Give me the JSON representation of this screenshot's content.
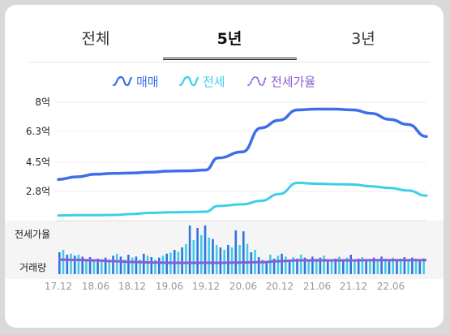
{
  "tabs": [
    {
      "label": "전체",
      "active": false
    },
    {
      "label": "5년",
      "active": true
    },
    {
      "label": "3년",
      "active": false
    }
  ],
  "legend": [
    {
      "label": "매매",
      "color": "#3d6fe8",
      "icon": "wave-icon-solid"
    },
    {
      "label": "전세",
      "color": "#3ccfe8",
      "icon": "wave-icon-solid"
    },
    {
      "label": "전세가율",
      "color": "#8a5bd6",
      "icon": "wave-icon-dotted"
    }
  ],
  "chart_data": {
    "type": "line",
    "y_tick_labels": [
      "8억",
      "6.3억",
      "4.5억",
      "2.8억"
    ],
    "y_ticks": [
      8,
      6.3,
      4.5,
      2.8
    ],
    "x_tick_labels": [
      "17.12",
      "18.06",
      "18.12",
      "19.06",
      "19.12",
      "20.06",
      "20.12",
      "21.06",
      "21.12",
      "22.06"
    ],
    "sub_labels": [
      "전세가율",
      "거래량"
    ],
    "series": [
      {
        "name": "매매",
        "color": "#3d6fe8",
        "x": [
          "17.12",
          "18.03",
          "18.06",
          "18.09",
          "18.12",
          "19.03",
          "19.06",
          "19.09",
          "19.12",
          "20.02",
          "20.06",
          "20.09",
          "20.12",
          "21.03",
          "21.06",
          "21.09",
          "21.12",
          "22.03",
          "22.06",
          "22.09",
          "22.12"
        ],
        "values": [
          3.5,
          3.65,
          3.8,
          3.85,
          3.88,
          3.92,
          3.98,
          4.0,
          4.05,
          4.75,
          5.1,
          6.5,
          6.95,
          7.55,
          7.6,
          7.6,
          7.55,
          7.35,
          7.0,
          6.7,
          6.0
        ]
      },
      {
        "name": "전세",
        "color": "#3ccfe8",
        "x": [
          "17.12",
          "18.03",
          "18.06",
          "18.09",
          "18.12",
          "19.03",
          "19.06",
          "19.09",
          "19.12",
          "20.02",
          "20.06",
          "20.09",
          "20.12",
          "21.03",
          "21.06",
          "21.09",
          "21.12",
          "22.03",
          "22.06",
          "22.09",
          "22.12"
        ],
        "values": [
          1.4,
          1.42,
          1.42,
          1.43,
          1.48,
          1.55,
          1.58,
          1.6,
          1.62,
          1.95,
          2.05,
          2.25,
          2.65,
          3.3,
          3.25,
          3.22,
          3.2,
          3.1,
          3.0,
          2.85,
          2.55
        ]
      },
      {
        "name": "전세가율",
        "color": "#8a5bd6",
        "values": [
          0.6,
          0.58,
          0.55,
          0.5,
          0.45,
          0.42,
          0.4,
          0.4,
          0.4,
          0.4,
          0.42,
          0.44,
          0.5,
          0.55,
          0.55,
          0.55,
          0.55,
          0.56,
          0.56,
          0.56,
          0.56
        ]
      }
    ],
    "volume": [
      0.45,
      0.5,
      0.4,
      0.42,
      0.38,
      0.4,
      0.36,
      0.3,
      0.35,
      0.28,
      0.32,
      0.3,
      0.34,
      0.3,
      0.38,
      0.42,
      0.36,
      0.3,
      0.4,
      0.34,
      0.36,
      0.3,
      0.42,
      0.38,
      0.35,
      0.3,
      0.34,
      0.38,
      0.42,
      0.44,
      0.5,
      0.46,
      0.55,
      0.62,
      1.0,
      0.7,
      0.95,
      0.8,
      1.0,
      0.75,
      0.72,
      0.6,
      0.55,
      0.5,
      0.6,
      0.55,
      0.9,
      0.6,
      0.88,
      0.62,
      0.45,
      0.5,
      0.35,
      0.3,
      0.25,
      0.4,
      0.32,
      0.38,
      0.42,
      0.36,
      0.3,
      0.35,
      0.32,
      0.4,
      0.34,
      0.3,
      0.36,
      0.32,
      0.34,
      0.38,
      0.3,
      0.28,
      0.32,
      0.36,
      0.3,
      0.34,
      0.4,
      0.3,
      0.32,
      0.35,
      0.28,
      0.3,
      0.34,
      0.3,
      0.36,
      0.32,
      0.3,
      0.34,
      0.3,
      0.32,
      0.35,
      0.3,
      0.34,
      0.32,
      0.3,
      0.33
    ]
  }
}
